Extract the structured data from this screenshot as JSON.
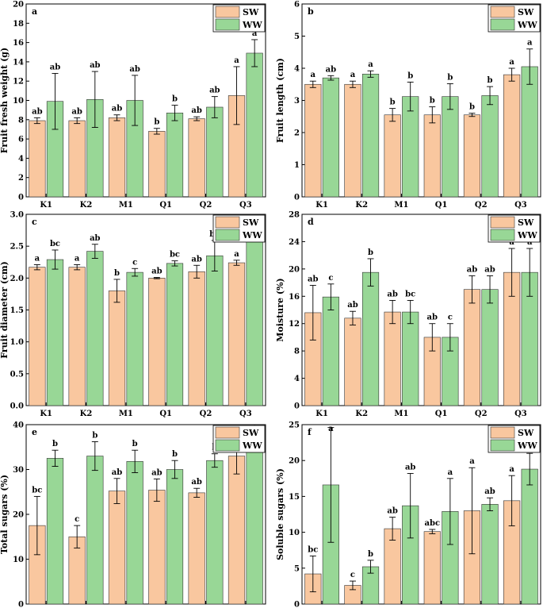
{
  "figure": {
    "colors": {
      "SW": "#f9c79f",
      "WW": "#98d796",
      "bar_stroke": "#333333",
      "axis": "#000000"
    },
    "legend": {
      "items": [
        "SW",
        "WW"
      ],
      "position": "top-right"
    }
  },
  "chart_data": [
    {
      "type": "bar",
      "panel": "a",
      "ylabel": "Fruit fresh weight (g)",
      "categories": [
        "K1",
        "K2",
        "M1",
        "Q1",
        "Q2",
        "Q3"
      ],
      "ylim": [
        0,
        20
      ],
      "yticks": [
        0,
        2,
        4,
        6,
        8,
        10,
        12,
        14,
        16,
        18,
        20
      ],
      "series": [
        {
          "name": "SW",
          "values": [
            7.9,
            7.9,
            8.2,
            6.8,
            8.1,
            10.5
          ],
          "errors": [
            0.3,
            0.3,
            0.3,
            0.3,
            0.2,
            3.0
          ],
          "letters": [
            "ab",
            "ab",
            "ab",
            "b",
            "ab",
            "a"
          ]
        },
        {
          "name": "WW",
          "values": [
            9.9,
            10.1,
            10.0,
            8.7,
            9.3,
            14.9
          ],
          "errors": [
            2.9,
            2.9,
            2.6,
            0.8,
            1.1,
            1.4
          ],
          "letters": [
            "ab",
            "ab",
            "ab",
            "b",
            "ab",
            "a"
          ]
        }
      ]
    },
    {
      "type": "bar",
      "panel": "b",
      "ylabel": "Fruit length (cm)",
      "categories": [
        "K1",
        "K2",
        "M1",
        "Q1",
        "Q2",
        "Q3"
      ],
      "ylim": [
        0,
        6
      ],
      "yticks": [
        0,
        1,
        2,
        3,
        4,
        5,
        6
      ],
      "series": [
        {
          "name": "SW",
          "values": [
            3.5,
            3.5,
            2.55,
            2.55,
            2.55,
            3.8
          ],
          "errors": [
            0.1,
            0.1,
            0.2,
            0.25,
            0.05,
            0.2
          ],
          "letters": [
            "a",
            "a",
            "b",
            "b",
            "b",
            "a"
          ]
        },
        {
          "name": "WW",
          "values": [
            3.7,
            3.82,
            3.12,
            3.12,
            3.15,
            4.05
          ],
          "errors": [
            0.07,
            0.1,
            0.45,
            0.4,
            0.28,
            0.55
          ],
          "letters": [
            "ab",
            "a",
            "b",
            "b",
            "b",
            "a"
          ]
        }
      ]
    },
    {
      "type": "bar",
      "panel": "c",
      "ylabel": "Fruit diameter (cm)",
      "categories": [
        "K1",
        "K2",
        "M1",
        "Q1",
        "Q2",
        "Q3"
      ],
      "ylim": [
        0,
        3.0
      ],
      "yticks": [
        0.0,
        0.5,
        1.0,
        1.5,
        2.0,
        2.5,
        3.0
      ],
      "ytick_labels": [
        "0.0",
        "0.5",
        "1.0",
        "1.5",
        "2.0",
        "2.5",
        "3.0"
      ],
      "series": [
        {
          "name": "SW",
          "values": [
            2.17,
            2.17,
            1.8,
            2.0,
            2.1,
            2.24
          ],
          "errors": [
            0.04,
            0.04,
            0.18,
            0.01,
            0.1,
            0.04
          ],
          "letters": [
            "a",
            "a",
            "b",
            "ab",
            "ab",
            "a"
          ]
        },
        {
          "name": "WW",
          "values": [
            2.29,
            2.42,
            2.09,
            2.23,
            2.35,
            2.7
          ],
          "errors": [
            0.15,
            0.11,
            0.06,
            0.04,
            0.24,
            0.08
          ],
          "letters": [
            "bc",
            "ab",
            "c",
            "bc",
            "bc",
            "a"
          ]
        }
      ]
    },
    {
      "type": "bar",
      "panel": "d",
      "ylabel": "Moisture (%)",
      "categories": [
        "K1",
        "K2",
        "M1",
        "Q1",
        "Q2",
        "Q3"
      ],
      "ylim": [
        0,
        28
      ],
      "yticks": [
        0,
        4,
        8,
        12,
        16,
        20,
        24,
        28
      ],
      "series": [
        {
          "name": "SW",
          "values": [
            13.6,
            12.8,
            13.7,
            10.0,
            17.0,
            19.5
          ],
          "errors": [
            4.0,
            1.0,
            1.7,
            2.0,
            2.0,
            3.5
          ],
          "letters": [
            "ab",
            "ab",
            "ab",
            "ab",
            "ab",
            "a"
          ]
        },
        {
          "name": "WW",
          "values": [
            15.9,
            19.5,
            13.7,
            10.0,
            17.0,
            19.5
          ],
          "errors": [
            1.9,
            2.0,
            1.7,
            2.0,
            2.0,
            3.5
          ],
          "letters": [
            "c",
            "b",
            "bc",
            "c",
            "ab",
            "a"
          ]
        }
      ]
    },
    {
      "type": "bar",
      "panel": "e",
      "ylabel": "Total sugars (%)",
      "categories": [
        "K1",
        "K2",
        "M1",
        "Q1",
        "Q2",
        "Q3"
      ],
      "ylim": [
        0,
        40
      ],
      "yticks": [
        0,
        10,
        20,
        30,
        40
      ],
      "series": [
        {
          "name": "SW",
          "values": [
            17.5,
            15.0,
            25.2,
            25.4,
            24.8,
            33.0
          ],
          "errors": [
            6.5,
            2.5,
            2.8,
            2.5,
            1.0,
            4.0
          ],
          "letters": [
            "bc",
            "c",
            "ab",
            "ab",
            "ab",
            "a"
          ]
        },
        {
          "name": "WW",
          "values": [
            32.5,
            33.0,
            31.8,
            30.0,
            32.0,
            38.8
          ],
          "errors": [
            1.8,
            3.2,
            2.5,
            2.0,
            1.5,
            2.0
          ],
          "letters": [
            "b",
            "b",
            "b",
            "b",
            "b",
            "a"
          ]
        }
      ]
    },
    {
      "type": "bar",
      "panel": "f",
      "ylabel": "Soluble sugars (%)",
      "categories": [
        "K1",
        "K2",
        "M1",
        "Q1",
        "Q2",
        "Q3"
      ],
      "ylim": [
        0,
        25
      ],
      "yticks": [
        0,
        5,
        10,
        15,
        20,
        25
      ],
      "series": [
        {
          "name": "SW",
          "values": [
            4.2,
            2.6,
            10.5,
            10.1,
            13.0,
            14.4
          ],
          "errors": [
            2.5,
            0.6,
            1.6,
            0.3,
            6.0,
            3.5
          ],
          "letters": [
            "bc",
            "c",
            "ab",
            "abc",
            "a",
            "a"
          ]
        },
        {
          "name": "WW",
          "values": [
            16.6,
            5.2,
            13.7,
            12.9,
            13.9,
            18.8
          ],
          "errors": [
            8.0,
            0.9,
            4.5,
            4.6,
            0.9,
            2.2
          ],
          "letters": [
            "a",
            "b",
            "ab",
            "a",
            "ab",
            "a"
          ]
        }
      ]
    }
  ]
}
